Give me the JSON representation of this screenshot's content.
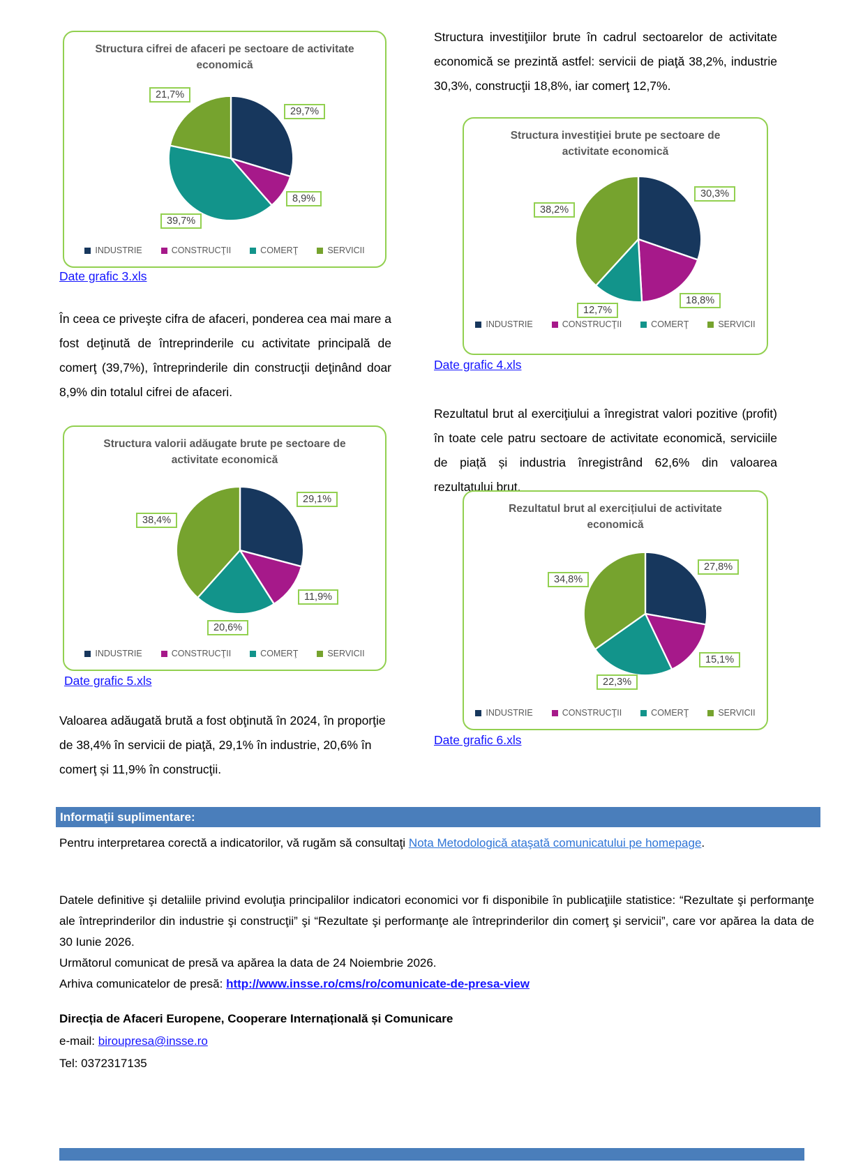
{
  "colors": {
    "industrie": "#17375D",
    "constructii": "#A6198A",
    "comert": "#12948B",
    "servicii": "#76A32E",
    "card_border": "#92D050",
    "info_bar": "#4A7EBB"
  },
  "chart_data": [
    {
      "type": "pie",
      "title": "Structura cifrei de afaceri pe sectoare de activitate economică",
      "categories": [
        "INDUSTRIE",
        "CONSTRUCŢII",
        "COMERŢ",
        "SERVICII"
      ],
      "values": [
        29.7,
        8.9,
        39.7,
        21.7
      ],
      "labels": [
        "29,7%",
        "8,9%",
        "39,7%",
        "21,7%"
      ],
      "colors": [
        "#17375D",
        "#A6198A",
        "#12948B",
        "#76A32E"
      ],
      "legend_position": "bottom"
    },
    {
      "type": "pie",
      "title": "Structura investiţiei brute pe sectoare de activitate economică",
      "categories": [
        "INDUSTRIE",
        "CONSTRUCŢII",
        "COMERŢ",
        "SERVICII"
      ],
      "values": [
        30.3,
        18.8,
        12.7,
        38.2
      ],
      "labels": [
        "30,3%",
        "18,8%",
        "12,7%",
        "38,2%"
      ],
      "colors": [
        "#17375D",
        "#A6198A",
        "#12948B",
        "#76A32E"
      ],
      "legend_position": "bottom"
    },
    {
      "type": "pie",
      "title": "Structura valorii adăugate brute pe sectoare de activitate economică",
      "categories": [
        "INDUSTRIE",
        "CONSTRUCŢII",
        "COMERŢ",
        "SERVICII"
      ],
      "values": [
        29.1,
        11.9,
        20.6,
        38.4
      ],
      "labels": [
        "29,1%",
        "11,9%",
        "20,6%",
        "38,4%"
      ],
      "colors": [
        "#17375D",
        "#A6198A",
        "#12948B",
        "#76A32E"
      ],
      "legend_position": "bottom"
    },
    {
      "type": "pie",
      "title": "Rezultatul brut al exercițiului de activitate economică",
      "categories": [
        "INDUSTRIE",
        "CONSTRUCŢII",
        "COMERŢ",
        "SERVICII"
      ],
      "values": [
        27.8,
        15.1,
        22.3,
        34.8
      ],
      "labels": [
        "27,8%",
        "15,1%",
        "22,3%",
        "34,8%"
      ],
      "colors": [
        "#17375D",
        "#A6198A",
        "#12948B",
        "#76A32E"
      ],
      "legend_position": "bottom"
    }
  ],
  "links": {
    "g3": "Date grafic 3.xls",
    "g4": "Date grafic 4.xls",
    "g5": "Date grafic 5.xls",
    "g6": "Date grafic 6.xls"
  },
  "paragraphs": {
    "cifra_afaceri": "În ceea ce priveşte cifra de afaceri, ponderea cea mai mare a fost deţinută de întreprinderile cu activitate principală de comerţ (39,7%), întreprinderile din construcţii deţinând doar 8,9% din totalul cifrei de afaceri.",
    "investitii": "Structura investiţiilor brute în cadrul sectoarelor de activitate economică se prezintă astfel: servicii de piaţă 38,2%, industrie 30,3%, construcţii 18,8%, iar comerţ 12,7%.",
    "valoare_adaugata": "Valoarea adăugată brută a fost obţinută în 2024, în proporţie de 38,4% în servicii de piaţă, 29,1% în industrie,  20,6% în comerţ  și 11,9% în construcţii.",
    "rezultat": "Rezultatul brut al exerciţiului a înregistrat valori pozitive (profit) în toate cele patru sectoare de activitate economică, serviciile de piață și industria înregistrând 62,6% din valoarea rezultatului brut."
  },
  "info": {
    "bar_title": "Informaţii suplimentare:",
    "consult_prefix": "Pentru interpretarea corectă a indicatorilor, vă rugăm să consultaţi ",
    "consult_link": "Nota Metodologică ataşată comunicatului pe homepage",
    "consult_suffix": ".",
    "datele": "Datele definitive şi detaliile privind evoluţia principalilor indicatori economici vor fi disponibile în publicaţiile statistice: “Rezultate şi performanţe ale întreprinderilor din industrie şi construcţii” şi “Rezultate şi performanţe ale întreprinderilor din comerţ şi servicii”, care vor apărea la data de 30 Iunie 2026.",
    "urmatorul": "Următorul comunicat de presă va apărea la data de 24 Noiembrie 2026.",
    "arhiva_prefix": "Arhiva comunicatelor de presă: ",
    "arhiva_link": "http://www.insse.ro/cms/ro/comunicate-de-presa-view",
    "directia": "Direcția de Afaceri Europene, Cooperare Internațională și Comunicare",
    "email_prefix": "e-mail: ",
    "email_link": "biroupresa@insse.ro",
    "tel": "Tel: 0372317135"
  }
}
